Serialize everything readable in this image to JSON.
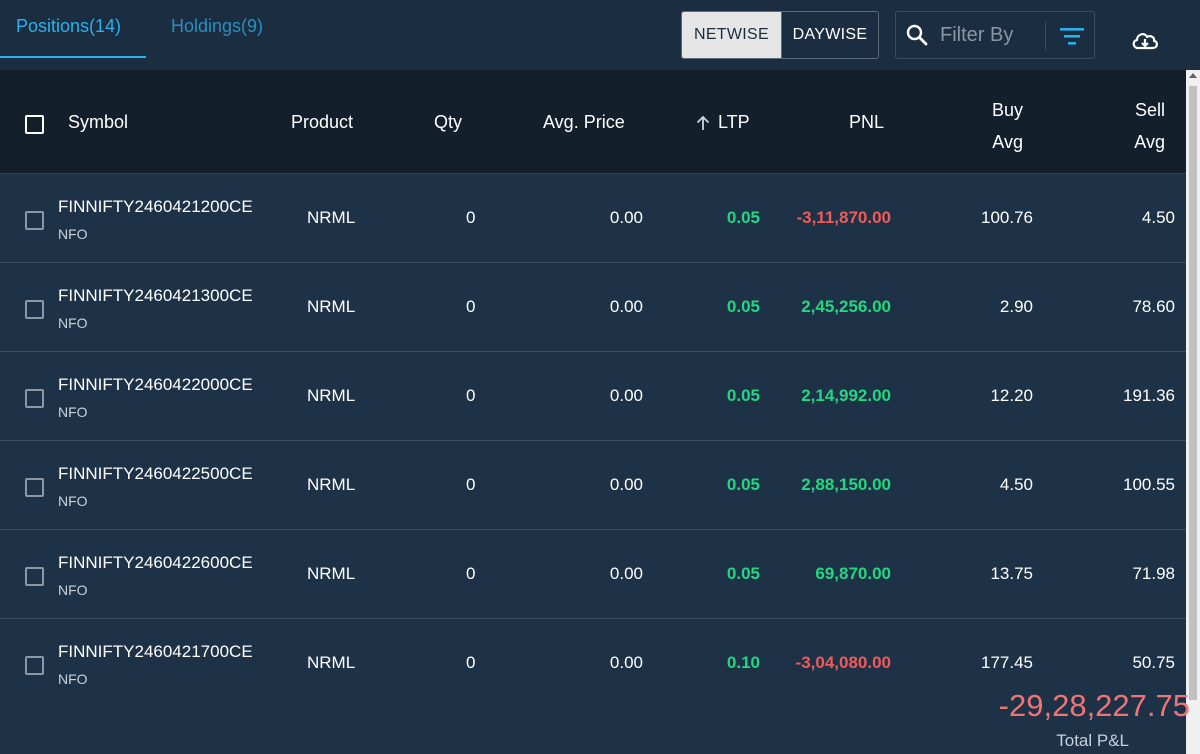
{
  "tabs": [
    {
      "label": "Positions(14)",
      "active": true
    },
    {
      "label": "Holdings(9)",
      "active": false
    }
  ],
  "view_toggle": {
    "netwise": "NETWISE",
    "daywise": "DAYWISE",
    "selected": "NETWISE"
  },
  "filter": {
    "placeholder": "Filter By",
    "value": "",
    "icon": "search-icon"
  },
  "icons": {
    "filter": "filter-lines-icon",
    "download": "cloud-download-icon",
    "sort": "arrow-up-icon"
  },
  "columns": {
    "symbol": "Symbol",
    "product": "Product",
    "qty": "Qty",
    "avg_price": "Avg. Price",
    "ltp": "LTP",
    "pnl": "PNL",
    "buy_avg_1": "Buy",
    "buy_avg_2": "Avg",
    "sell_avg_1": "Sell",
    "sell_avg_2": "Avg"
  },
  "rows": [
    {
      "symbol": "FINNIFTY2460421200CE",
      "exchange": "NFO",
      "product": "NRML",
      "qty": "0",
      "avg_price": "0.00",
      "ltp": "0.05",
      "pnl": "-3,11,870.00",
      "buy_avg": "100.76",
      "sell_avg": "4.50"
    },
    {
      "symbol": "FINNIFTY2460421300CE",
      "exchange": "NFO",
      "product": "NRML",
      "qty": "0",
      "avg_price": "0.00",
      "ltp": "0.05",
      "pnl": "2,45,256.00",
      "buy_avg": "2.90",
      "sell_avg": "78.60"
    },
    {
      "symbol": "FINNIFTY2460422000CE",
      "exchange": "NFO",
      "product": "NRML",
      "qty": "0",
      "avg_price": "0.00",
      "ltp": "0.05",
      "pnl": "2,14,992.00",
      "buy_avg": "12.20",
      "sell_avg": "191.36"
    },
    {
      "symbol": "FINNIFTY2460422500CE",
      "exchange": "NFO",
      "product": "NRML",
      "qty": "0",
      "avg_price": "0.00",
      "ltp": "0.05",
      "pnl": "2,88,150.00",
      "buy_avg": "4.50",
      "sell_avg": "100.55"
    },
    {
      "symbol": "FINNIFTY2460422600CE",
      "exchange": "NFO",
      "product": "NRML",
      "qty": "0",
      "avg_price": "0.00",
      "ltp": "0.05",
      "pnl": "69,870.00",
      "buy_avg": "13.75",
      "sell_avg": "71.98"
    },
    {
      "symbol": "FINNIFTY2460421700CE",
      "exchange": "NFO",
      "product": "NRML",
      "qty": "0",
      "avg_price": "0.00",
      "ltp": "0.10",
      "pnl": "-3,04,080.00",
      "buy_avg": "177.45",
      "sell_avg": "50.75"
    }
  ],
  "total": {
    "value": "-29,28,227.75",
    "label": "Total P&L"
  },
  "colors": {
    "positive": "#22d77f",
    "negative": "#f05a5a",
    "accent": "#2ab0ee",
    "background": "#1e3247",
    "header": "#141f2c"
  }
}
